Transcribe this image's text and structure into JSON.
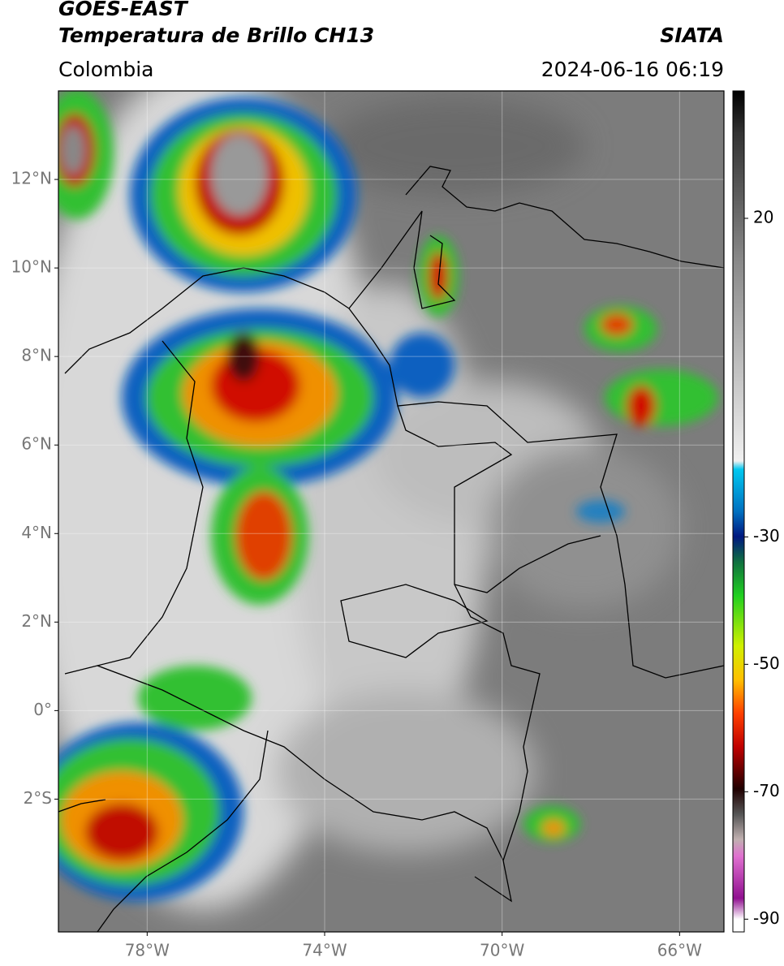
{
  "header": {
    "title": "GOES-EAST",
    "subtitle": "Temperatura de Brillo CH13",
    "region": "Colombia",
    "source": "SIATA",
    "datetime": "2024-06-16 06:19"
  },
  "map": {
    "lonlim": [
      -80,
      -65
    ],
    "latlim": [
      -5,
      14
    ],
    "xticks": [
      {
        "value": -78,
        "label": "78°W"
      },
      {
        "value": -74,
        "label": "74°W"
      },
      {
        "value": -70,
        "label": "70°W"
      },
      {
        "value": -66,
        "label": "66°W"
      }
    ],
    "yticks": [
      {
        "value": 12,
        "label": "12°N"
      },
      {
        "value": 10,
        "label": "10°N"
      },
      {
        "value": 8,
        "label": "8°N"
      },
      {
        "value": 6,
        "label": "6°N"
      },
      {
        "value": 4,
        "label": "4°N"
      },
      {
        "value": 2,
        "label": "2°N"
      },
      {
        "value": 0,
        "label": "0°"
      },
      {
        "value": -2,
        "label": "2°S"
      }
    ],
    "grid": true
  },
  "colorbar": {
    "lim": [
      -92,
      40
    ],
    "ticks": [
      20,
      -30,
      -50,
      -70,
      -90
    ]
  }
}
